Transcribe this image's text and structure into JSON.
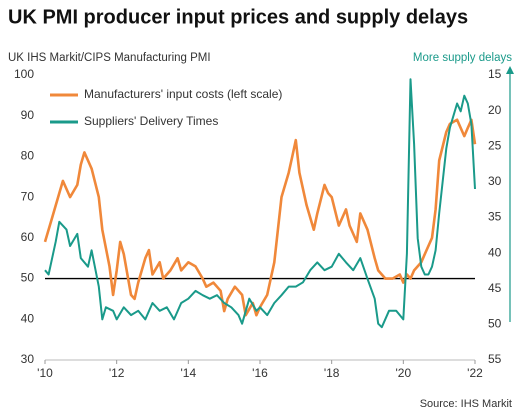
{
  "chart_data": {
    "type": "line",
    "title": "UK PMI producer input prices and supply delays",
    "y_label": "UK IHS Markit/CIPS Manufacturing PMI",
    "y2_label": "More supply delays",
    "source": "Source: IHS Markit",
    "xlim": [
      2010,
      2022
    ],
    "xticks": [
      {
        "value": 2010,
        "label": "'10"
      },
      {
        "value": 2012,
        "label": "'12"
      },
      {
        "value": 2014,
        "label": "'14"
      },
      {
        "value": 2016,
        "label": "'16"
      },
      {
        "value": 2018,
        "label": "'18"
      },
      {
        "value": 2020,
        "label": "'20"
      },
      {
        "value": 2022,
        "label": "'22"
      }
    ],
    "ylim": [
      30,
      100
    ],
    "yticks": [
      30,
      40,
      50,
      60,
      70,
      80,
      90,
      100
    ],
    "y2lim": [
      55,
      15
    ],
    "y2ticks": [
      15,
      20,
      25,
      30,
      35,
      40,
      45,
      50,
      55
    ],
    "hline": 50,
    "grid": false,
    "legend": "upper left",
    "series": [
      {
        "name": "Manufacturers' input costs (left scale)",
        "color": "#f0883a",
        "x": [
          2010.0,
          2010.2,
          2010.4,
          2010.5,
          2010.7,
          2010.9,
          2011.0,
          2011.1,
          2011.3,
          2011.5,
          2011.6,
          2011.8,
          2011.9,
          2012.0,
          2012.1,
          2012.2,
          2012.4,
          2012.5,
          2012.6,
          2012.8,
          2012.9,
          2013.0,
          2013.2,
          2013.3,
          2013.5,
          2013.7,
          2013.8,
          2014.0,
          2014.2,
          2014.4,
          2014.5,
          2014.7,
          2014.9,
          2015.0,
          2015.1,
          2015.3,
          2015.5,
          2015.6,
          2015.8,
          2015.9,
          2016.0,
          2016.2,
          2016.4,
          2016.5,
          2016.6,
          2016.8,
          2016.9,
          2017.0,
          2017.1,
          2017.3,
          2017.5,
          2017.6,
          2017.8,
          2017.9,
          2018.0,
          2018.2,
          2018.4,
          2018.5,
          2018.7,
          2018.8,
          2019.0,
          2019.2,
          2019.3,
          2019.5,
          2019.7,
          2019.9,
          2020.0,
          2020.1,
          2020.2,
          2020.3,
          2020.5,
          2020.6,
          2020.8,
          2020.9,
          2021.0,
          2021.2,
          2021.3,
          2021.5,
          2021.7,
          2021.8,
          2021.9,
          2022.0
        ],
        "values": [
          59,
          65,
          71,
          74,
          70,
          73,
          78,
          81,
          77,
          70,
          62,
          53,
          46,
          52,
          59,
          56,
          46,
          45,
          49,
          55,
          57,
          51,
          54,
          50,
          52,
          55,
          52,
          54,
          53,
          50,
          48,
          49,
          47,
          42,
          45,
          48,
          46,
          41,
          44,
          41,
          43,
          46,
          54,
          62,
          70,
          76,
          80,
          84,
          76,
          68,
          62,
          66,
          73,
          71,
          70,
          63,
          67,
          63,
          59,
          66,
          62,
          55,
          52,
          50,
          50,
          51,
          49,
          51,
          50,
          52,
          54,
          56,
          60,
          67,
          79,
          86,
          88,
          89,
          85,
          87,
          89,
          83
        ]
      },
      {
        "name": "Suppliers' Delivery Times",
        "color": "#1a9a8a",
        "axis": "y2",
        "x": [
          2010.0,
          2010.1,
          2010.3,
          2010.4,
          2010.6,
          2010.7,
          2010.9,
          2011.0,
          2011.2,
          2011.3,
          2011.5,
          2011.6,
          2011.7,
          2011.9,
          2012.0,
          2012.2,
          2012.4,
          2012.6,
          2012.8,
          2013.0,
          2013.2,
          2013.4,
          2013.6,
          2013.8,
          2014.0,
          2014.2,
          2014.4,
          2014.6,
          2014.8,
          2015.0,
          2015.2,
          2015.4,
          2015.5,
          2015.7,
          2015.9,
          2016.0,
          2016.2,
          2016.4,
          2016.6,
          2016.8,
          2017.0,
          2017.2,
          2017.4,
          2017.6,
          2017.8,
          2018.0,
          2018.2,
          2018.4,
          2018.6,
          2018.8,
          2019.0,
          2019.2,
          2019.3,
          2019.4,
          2019.6,
          2019.8,
          2020.0,
          2020.1,
          2020.2,
          2020.3,
          2020.4,
          2020.5,
          2020.6,
          2020.7,
          2020.8,
          2020.9,
          2021.0,
          2021.2,
          2021.3,
          2021.5,
          2021.6,
          2021.7,
          2021.8,
          2021.9,
          2022.0
        ],
        "values": [
          42.4,
          43.0,
          38.4,
          35.6,
          36.7,
          39.0,
          37.3,
          40.7,
          41.9,
          39.6,
          44.7,
          49.3,
          47.6,
          48.1,
          49.3,
          47.6,
          48.7,
          48.1,
          49.3,
          47.0,
          48.1,
          47.6,
          49.3,
          47.0,
          46.4,
          45.3,
          45.9,
          46.4,
          45.9,
          47.0,
          47.6,
          48.7,
          49.9,
          46.4,
          48.1,
          47.6,
          48.7,
          47.0,
          45.9,
          44.7,
          44.7,
          44.1,
          42.4,
          41.3,
          42.4,
          41.9,
          40.1,
          41.3,
          42.4,
          40.7,
          43.6,
          46.4,
          49.9,
          50.4,
          48.1,
          48.1,
          49.3,
          40.1,
          15.6,
          24.7,
          37.9,
          41.9,
          43.0,
          43.0,
          41.9,
          39.6,
          34.4,
          25.3,
          22.4,
          19.0,
          20.1,
          17.9,
          19.0,
          21.9,
          31.0
        ]
      }
    ]
  }
}
